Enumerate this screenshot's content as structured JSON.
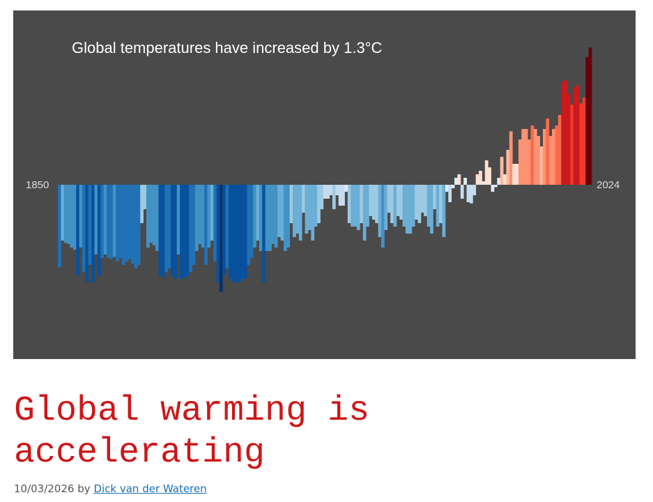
{
  "chart_data": {
    "type": "bar",
    "title": "Global temperatures have increased by 1.3°C",
    "categories": [
      "1850",
      null,
      null,
      null,
      null,
      null,
      null,
      null,
      null,
      null,
      null,
      null,
      null,
      null,
      null,
      null,
      null,
      null,
      null,
      null,
      null,
      null,
      null,
      null,
      null,
      null,
      null,
      null,
      null,
      null,
      null,
      null,
      null,
      null,
      null,
      null,
      null,
      null,
      null,
      null,
      null,
      null,
      null,
      null,
      null,
      null,
      null,
      null,
      null,
      null,
      null,
      null,
      null,
      null,
      null,
      null,
      null,
      null,
      null,
      null,
      null,
      null,
      null,
      null,
      null,
      null,
      null,
      null,
      null,
      null,
      null,
      null,
      null,
      null,
      null,
      null,
      null,
      null,
      null,
      null,
      null,
      null,
      null,
      null,
      null,
      null,
      null,
      null,
      null,
      null,
      null,
      null,
      null,
      null,
      null,
      null,
      null,
      null,
      null,
      null,
      null,
      null,
      null,
      null,
      null,
      null,
      null,
      null,
      null,
      null,
      null,
      null,
      null,
      null,
      null,
      null,
      null,
      null,
      null,
      null,
      null,
      null,
      null,
      null,
      null,
      null,
      null,
      null,
      null,
      null,
      null,
      null,
      null,
      null,
      null,
      null,
      null,
      null,
      null,
      null,
      null,
      null,
      null,
      null,
      null,
      null,
      null,
      null,
      null,
      null,
      null,
      null,
      null,
      null,
      null,
      null,
      null,
      null,
      null,
      null,
      null,
      null,
      null,
      null,
      null,
      null,
      null,
      null,
      null,
      null,
      null,
      null,
      null,
      null,
      "2024"
    ],
    "values": [
      -0.71,
      -0.48,
      -0.5,
      -0.51,
      -0.54,
      -0.56,
      -0.78,
      -0.54,
      -0.75,
      -0.84,
      -0.69,
      -0.84,
      -0.6,
      -0.78,
      -0.63,
      -0.6,
      -0.63,
      -0.64,
      -0.62,
      -0.66,
      -0.63,
      -0.69,
      -0.66,
      -0.64,
      -0.68,
      -0.72,
      -0.69,
      -0.33,
      -0.21,
      -0.54,
      -0.5,
      -0.52,
      -0.57,
      -0.78,
      -0.8,
      -0.75,
      -0.72,
      -0.78,
      -0.81,
      -0.6,
      -0.81,
      -0.8,
      -0.78,
      -0.75,
      -0.69,
      -0.57,
      -0.51,
      -0.54,
      -0.69,
      -0.54,
      -0.48,
      -0.66,
      -0.84,
      -0.92,
      -0.78,
      -0.72,
      -0.81,
      -0.84,
      -0.84,
      -0.84,
      -0.81,
      -0.81,
      -0.69,
      -0.63,
      -0.54,
      -0.48,
      -0.57,
      -0.84,
      -0.57,
      -0.57,
      -0.51,
      -0.54,
      -0.45,
      -0.48,
      -0.57,
      -0.54,
      -0.33,
      -0.45,
      -0.42,
      -0.48,
      -0.24,
      -0.42,
      -0.39,
      -0.48,
      -0.36,
      -0.33,
      -0.21,
      -0.12,
      -0.12,
      -0.09,
      -0.21,
      -0.09,
      -0.18,
      -0.18,
      -0.06,
      -0.33,
      -0.36,
      -0.36,
      -0.39,
      -0.33,
      -0.48,
      -0.36,
      -0.27,
      -0.3,
      -0.33,
      -0.45,
      -0.54,
      -0.39,
      -0.24,
      -0.33,
      -0.36,
      -0.27,
      -0.3,
      -0.36,
      -0.42,
      -0.42,
      -0.36,
      -0.3,
      -0.33,
      -0.24,
      -0.27,
      -0.36,
      -0.42,
      -0.21,
      -0.36,
      -0.33,
      -0.45,
      -0.06,
      -0.15,
      -0.03,
      0.06,
      0.09,
      -0.12,
      0.06,
      -0.15,
      -0.16,
      -0.09,
      0.09,
      0.12,
      0.03,
      0.21,
      0.15,
      -0.06,
      -0.02,
      0.06,
      0.24,
      0.09,
      0.3,
      0.46,
      0.18,
      0.18,
      0.39,
      0.48,
      0.48,
      0.39,
      0.51,
      0.48,
      0.42,
      0.33,
      0.48,
      0.57,
      0.42,
      0.48,
      0.51,
      0.6,
      0.88,
      0.9,
      0.78,
      0.69,
      0.84,
      0.86,
      0.7,
      0.75,
      1.1,
      1.18
    ],
    "ylim": [
      -1.5,
      1.5
    ],
    "colorscale": [
      "#08306b",
      "#08519c",
      "#2171b5",
      "#4292c6",
      "#6baed6",
      "#9ecae1",
      "#c6dbef",
      "#deebf7",
      "#fee0d2",
      "#fcbba1",
      "#fc9272",
      "#fb6a4a",
      "#ef3b2c",
      "#cb181d",
      "#a50f15",
      "#67000d"
    ],
    "clim": [
      -1.05,
      1.2
    ]
  },
  "post": {
    "title": "Global warming is accelerating",
    "date": "10/03/2026",
    "by": "by",
    "author": "Dick van der Wateren"
  }
}
